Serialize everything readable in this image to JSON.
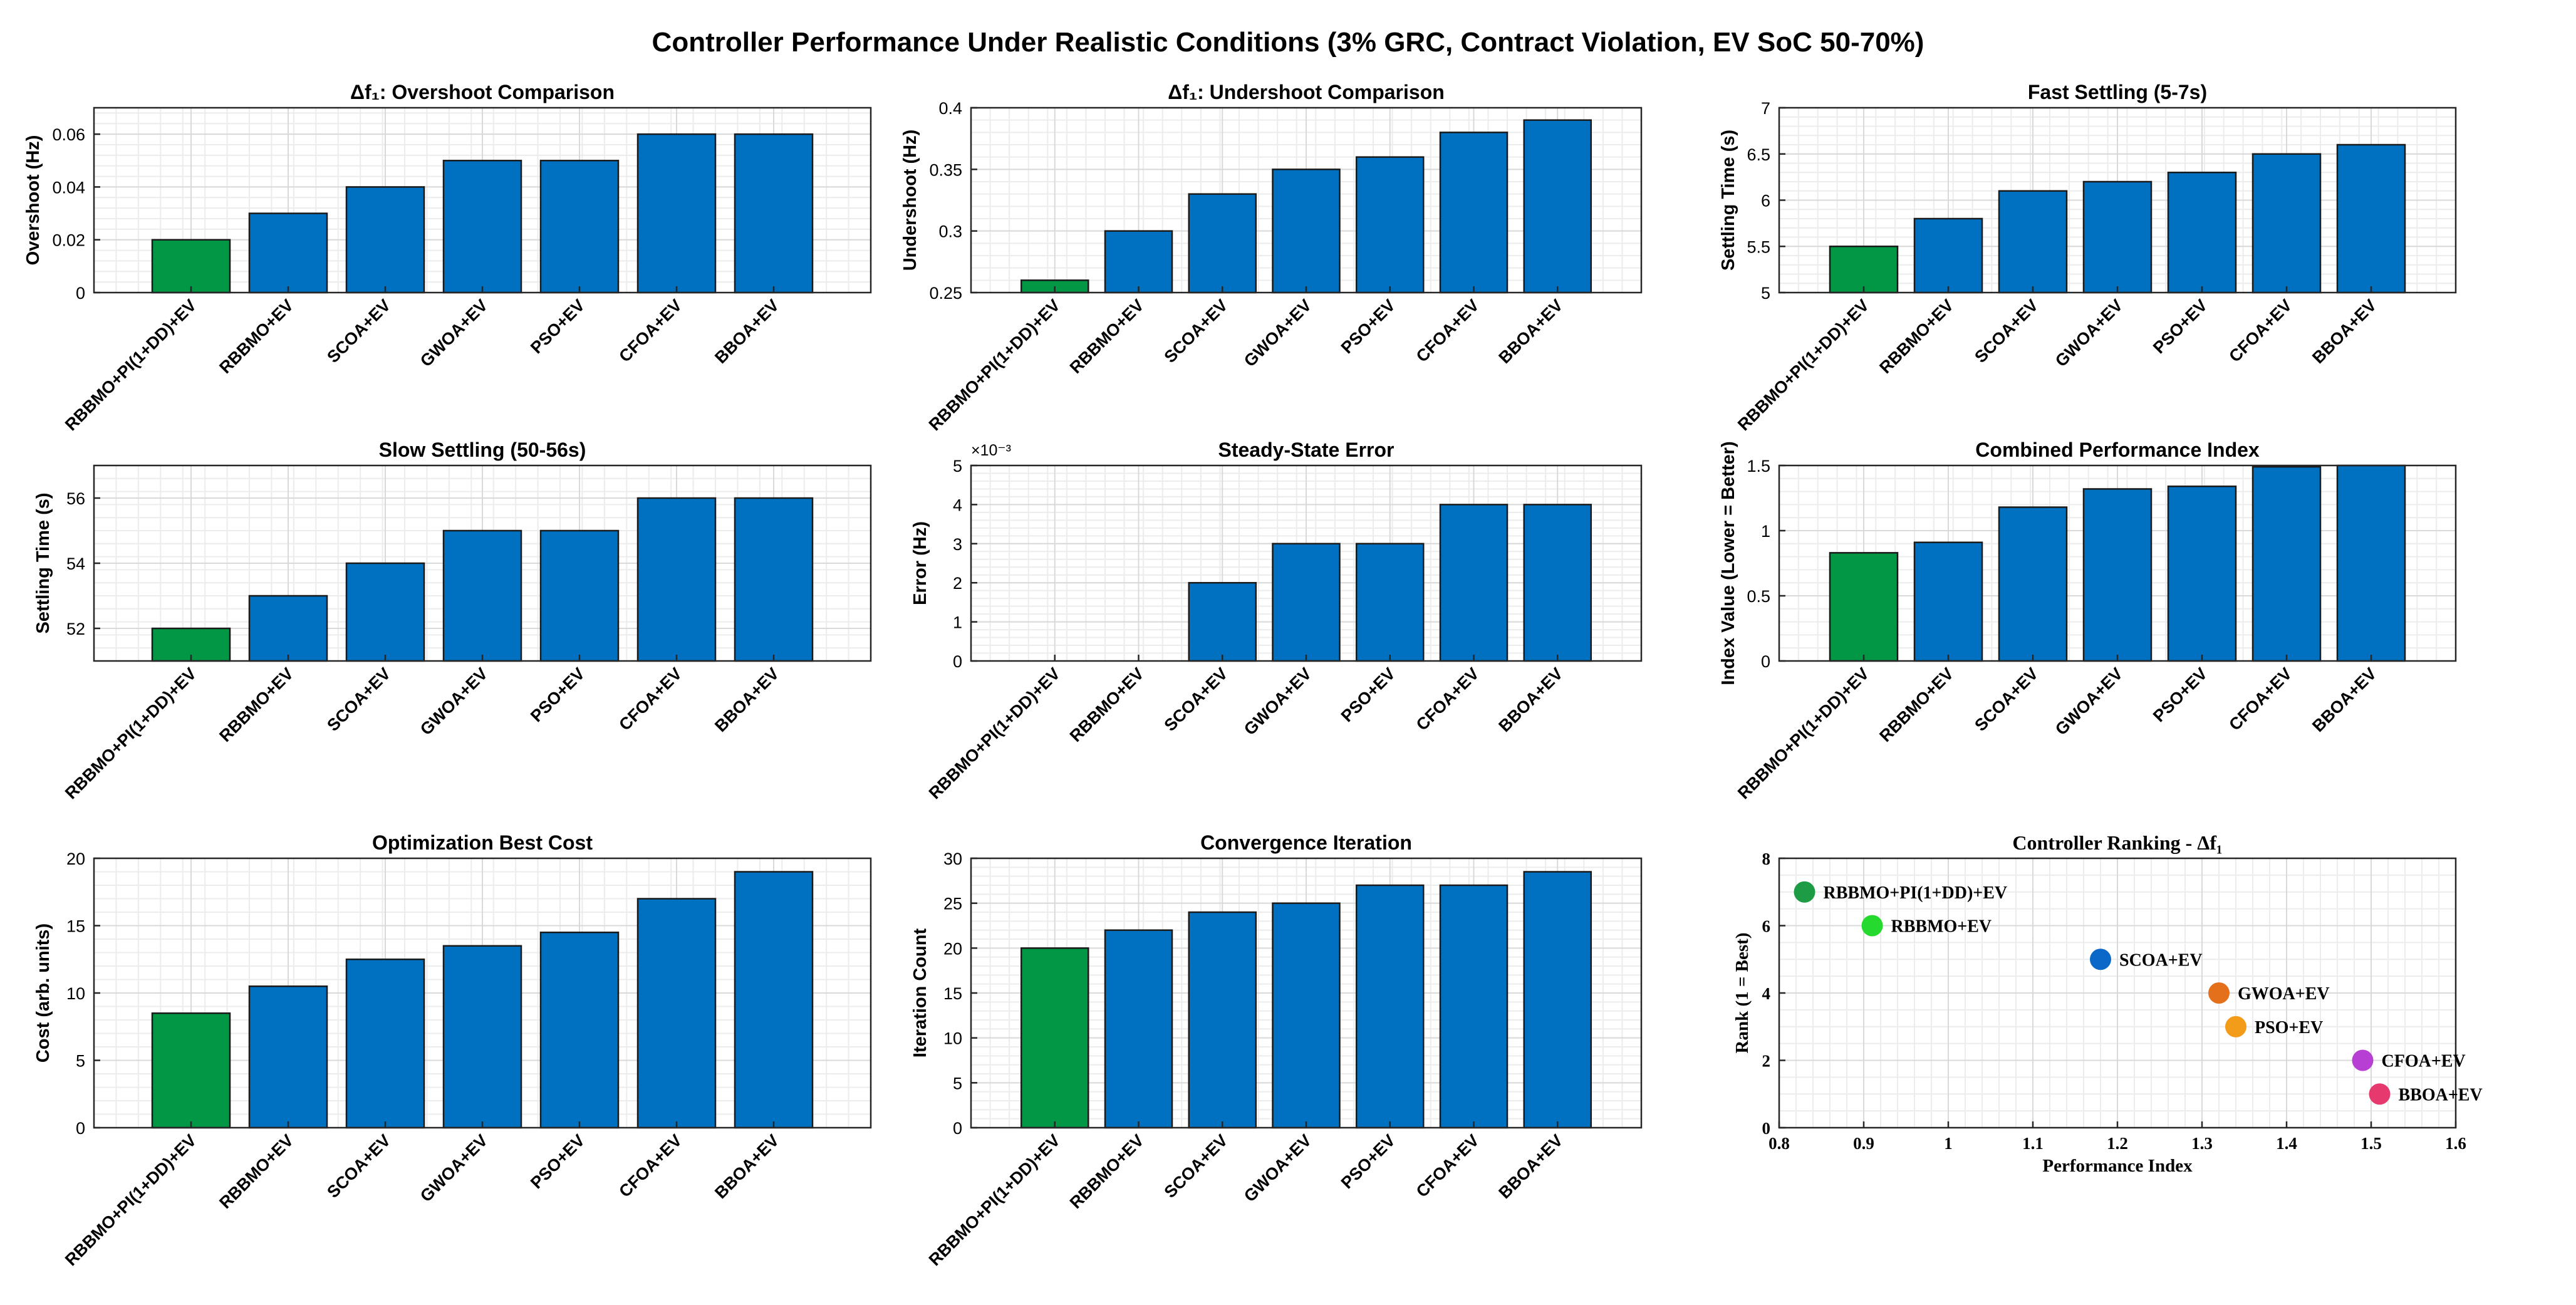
{
  "figure_title": "Controller Performance Under Realistic Conditions (3% GRC, Contract Violation, EV SoC 50-70%)",
  "colors": {
    "best": "#019745",
    "other": "#0071C1",
    "grid": "#d9d9d9",
    "axis": "#262626"
  },
  "chart_data": [
    {
      "type": "bar",
      "title": "Δf₁: Overshoot Comparison",
      "ylabel": "Overshoot (Hz)",
      "categories": [
        "RBBMO+PI(1+DD)+EV",
        "RBBMO+EV",
        "SCOA+EV",
        "GWOA+EV",
        "PSO+EV",
        "CFOA+EV",
        "BBOA+EV"
      ],
      "values": [
        0.02,
        0.03,
        0.04,
        0.05,
        0.05,
        0.06,
        0.06
      ],
      "ylim": [
        0,
        0.07
      ],
      "yticks": [
        0,
        0.02,
        0.04,
        0.06
      ],
      "ytick_labels": [
        "0",
        "0.02",
        "0.04",
        "0.06"
      ],
      "highlight_index": 0
    },
    {
      "type": "bar",
      "title": "Δf₁: Undershoot Comparison",
      "ylabel": "Undershoot (Hz)",
      "categories": [
        "RBBMO+PI(1+DD)+EV",
        "RBBMO+EV",
        "SCOA+EV",
        "GWOA+EV",
        "PSO+EV",
        "CFOA+EV",
        "BBOA+EV"
      ],
      "values": [
        0.26,
        0.3,
        0.33,
        0.35,
        0.36,
        0.38,
        0.39
      ],
      "ylim": [
        0.25,
        0.4
      ],
      "yticks": [
        0.25,
        0.3,
        0.35,
        0.4
      ],
      "ytick_labels": [
        "0.25",
        "0.3",
        "0.35",
        "0.4"
      ],
      "highlight_index": 0
    },
    {
      "type": "bar",
      "title": "Fast Settling (5-7s)",
      "ylabel": "Settling Time (s)",
      "categories": [
        "RBBMO+PI(1+DD)+EV",
        "RBBMO+EV",
        "SCOA+EV",
        "GWOA+EV",
        "PSO+EV",
        "CFOA+EV",
        "BBOA+EV"
      ],
      "values": [
        5.5,
        5.8,
        6.1,
        6.2,
        6.3,
        6.5,
        6.6
      ],
      "ylim": [
        5,
        7
      ],
      "yticks": [
        5,
        5.5,
        6,
        6.5,
        7
      ],
      "ytick_labels": [
        "5",
        "5.5",
        "6",
        "6.5",
        "7"
      ],
      "highlight_index": 0
    },
    {
      "type": "bar",
      "title": "Slow Settling (50-56s)",
      "ylabel": "Settling Time (s)",
      "categories": [
        "RBBMO+PI(1+DD)+EV",
        "RBBMO+EV",
        "SCOA+EV",
        "GWOA+EV",
        "PSO+EV",
        "CFOA+EV",
        "BBOA+EV"
      ],
      "values": [
        52,
        53,
        54,
        55,
        55,
        56,
        56
      ],
      "ylim": [
        51,
        57
      ],
      "yticks": [
        52,
        54,
        56
      ],
      "ytick_labels": [
        "52",
        "54",
        "56"
      ],
      "highlight_index": 0
    },
    {
      "type": "bar",
      "title": "Steady-State Error",
      "ylabel": "Error (Hz)",
      "exponent_label": "×10⁻³",
      "categories": [
        "RBBMO+PI(1+DD)+EV",
        "RBBMO+EV",
        "SCOA+EV",
        "GWOA+EV",
        "PSO+EV",
        "CFOA+EV",
        "BBOA+EV"
      ],
      "values": [
        0,
        0,
        2,
        3,
        3,
        4,
        4
      ],
      "ylim": [
        0,
        5
      ],
      "yticks": [
        0,
        1,
        2,
        3,
        4,
        5
      ],
      "ytick_labels": [
        "0",
        "1",
        "2",
        "3",
        "4",
        "5"
      ],
      "highlight_index": 0
    },
    {
      "type": "bar",
      "title": "Combined Performance Index",
      "ylabel": "Index Value (Lower = Better)",
      "categories": [
        "RBBMO+PI(1+DD)+EV",
        "RBBMO+EV",
        "SCOA+EV",
        "GWOA+EV",
        "PSO+EV",
        "CFOA+EV",
        "BBOA+EV"
      ],
      "values": [
        0.83,
        0.91,
        1.18,
        1.32,
        1.34,
        1.49,
        1.51
      ],
      "ylim": [
        0,
        1.5
      ],
      "yticks": [
        0,
        0.5,
        1,
        1.5
      ],
      "ytick_labels": [
        "0",
        "0.5",
        "1",
        "1.5"
      ],
      "highlight_index": 0
    },
    {
      "type": "bar",
      "title": "Optimization Best Cost",
      "ylabel": "Cost (arb. units)",
      "categories": [
        "RBBMO+PI(1+DD)+EV",
        "RBBMO+EV",
        "SCOA+EV",
        "GWOA+EV",
        "PSO+EV",
        "CFOA+EV",
        "BBOA+EV"
      ],
      "values": [
        8.5,
        10.5,
        12.5,
        13.5,
        14.5,
        17,
        19
      ],
      "ylim": [
        0,
        20
      ],
      "yticks": [
        0,
        5,
        10,
        15,
        20
      ],
      "ytick_labels": [
        "0",
        "5",
        "10",
        "15",
        "20"
      ],
      "highlight_index": 0
    },
    {
      "type": "bar",
      "title": "Convergence Iteration",
      "ylabel": "Iteration Count",
      "categories": [
        "RBBMO+PI(1+DD)+EV",
        "RBBMO+EV",
        "SCOA+EV",
        "GWOA+EV",
        "PSO+EV",
        "CFOA+EV",
        "BBOA+EV"
      ],
      "values": [
        20,
        22,
        24,
        25,
        27,
        27,
        28.5
      ],
      "ylim": [
        0,
        30
      ],
      "yticks": [
        0,
        5,
        10,
        15,
        20,
        25,
        30
      ],
      "ytick_labels": [
        "0",
        "5",
        "10",
        "15",
        "20",
        "25",
        "30"
      ],
      "highlight_index": 0
    },
    {
      "type": "scatter",
      "title": "Controller Ranking - Δf₁",
      "xlabel": "Performance Index",
      "ylabel": "Rank (1 = Best)",
      "xlim": [
        0.8,
        1.6
      ],
      "ylim": [
        0,
        8
      ],
      "xticks": [
        0.8,
        0.9,
        1,
        1.1,
        1.2,
        1.3,
        1.4,
        1.5,
        1.6
      ],
      "xtick_labels": [
        "0.8",
        "0.9",
        "1",
        "1.1",
        "1.2",
        "1.3",
        "1.4",
        "1.5",
        "1.6"
      ],
      "yticks": [
        0,
        2,
        4,
        6,
        8
      ],
      "ytick_labels": [
        "0",
        "2",
        "4",
        "6",
        "8"
      ],
      "points": [
        {
          "label": "RBBMO+PI(1+DD)+EV",
          "x": 0.83,
          "y": 7,
          "color": "#1e9c45"
        },
        {
          "label": "RBBMO+EV",
          "x": 0.91,
          "y": 6,
          "color": "#26d92e"
        },
        {
          "label": "SCOA+EV",
          "x": 1.18,
          "y": 5,
          "color": "#0b68c9"
        },
        {
          "label": "GWOA+EV",
          "x": 1.32,
          "y": 4,
          "color": "#e4701c"
        },
        {
          "label": "PSO+EV",
          "x": 1.34,
          "y": 3,
          "color": "#f39c1a"
        },
        {
          "label": "CFOA+EV",
          "x": 1.49,
          "y": 2,
          "color": "#b73fd4"
        },
        {
          "label": "BBOA+EV",
          "x": 1.51,
          "y": 1,
          "color": "#e63a6e"
        }
      ]
    }
  ]
}
